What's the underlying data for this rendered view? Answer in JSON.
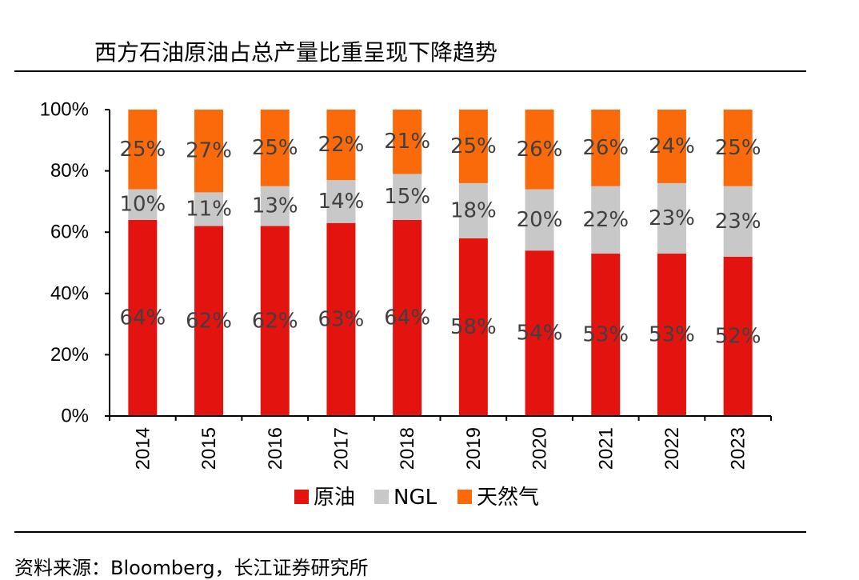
{
  "header": {
    "title": "西方石油原油占总产量比重呈现下降趋势"
  },
  "footer": {
    "source": "资料来源：Bloomberg，长江证券研究所"
  },
  "colors": {
    "crude": "#e3130f",
    "ngl": "#c8c8c8",
    "gas": "#fa6a0a",
    "label": "#404040"
  },
  "chart_data": {
    "type": "bar",
    "stacked": true,
    "categories": [
      "2014",
      "2015",
      "2016",
      "2017",
      "2018",
      "2019",
      "2020",
      "2021",
      "2022",
      "2023"
    ],
    "series": [
      {
        "name": "原油",
        "values": [
          64,
          62,
          62,
          63,
          64,
          58,
          54,
          53,
          53,
          52
        ],
        "labels": [
          "64%",
          "62%",
          "62%",
          "63%",
          "64%",
          "58%",
          "54%",
          "53%",
          "53%",
          "52%"
        ]
      },
      {
        "name": "NGL",
        "values": [
          10,
          11,
          13,
          14,
          15,
          18,
          20,
          22,
          23,
          23
        ],
        "labels": [
          "10%",
          "11%",
          "13%",
          "14%",
          "15%",
          "18%",
          "20%",
          "22%",
          "23%",
          "23%"
        ]
      },
      {
        "name": "天然气",
        "values": [
          25,
          27,
          25,
          22,
          21,
          25,
          26,
          26,
          24,
          25
        ],
        "labels": [
          "25%",
          "27%",
          "25%",
          "22%",
          "21%",
          "25%",
          "26%",
          "26%",
          "24%",
          "25%"
        ]
      }
    ],
    "yticks": [
      "0%",
      "20%",
      "40%",
      "60%",
      "80%",
      "100%"
    ],
    "ylim": [
      0,
      100
    ],
    "grid": false,
    "legend": "bottom"
  }
}
